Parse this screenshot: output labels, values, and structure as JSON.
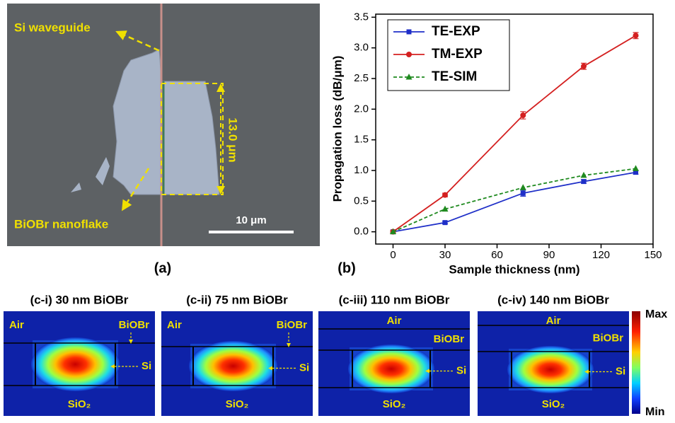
{
  "panel_a": {
    "label": "(a)",
    "waveguide_label": "Si waveguide",
    "flake_label": "BiOBr nanoflake",
    "width_label": "13.0 μm",
    "scale_label": "10 μm"
  },
  "panel_b": {
    "label": "(b)"
  },
  "chart_data": {
    "type": "line",
    "x_label": "Sample thickness (nm)",
    "y_label": "Propagation loss (dB/μm)",
    "x": [
      0,
      30,
      75,
      110,
      140
    ],
    "series": [
      {
        "name": "TE-EXP",
        "color": "#1f2fc8",
        "marker": "square",
        "linestyle": "solid",
        "values": [
          0,
          0.15,
          0.63,
          0.82,
          0.97
        ],
        "errors": [
          0.02,
          0.02,
          0.05,
          0.03,
          0.03
        ]
      },
      {
        "name": "TM-EXP",
        "color": "#d42020",
        "marker": "circle",
        "linestyle": "solid",
        "values": [
          0,
          0.6,
          1.9,
          2.7,
          3.2
        ],
        "errors": [
          0.02,
          0.03,
          0.06,
          0.05,
          0.05
        ]
      },
      {
        "name": "TE-SIM",
        "color": "#1f8a1f",
        "marker": "triangle",
        "linestyle": "dashed",
        "values": [
          0,
          0.37,
          0.72,
          0.92,
          1.03
        ]
      }
    ],
    "xlim": [
      -10,
      150
    ],
    "xticks": [
      0,
      30,
      60,
      90,
      120,
      150
    ],
    "ylim": [
      -0.2,
      3.55
    ],
    "yticks": [
      {
        "value": 0,
        "label": "0.0"
      },
      0.5,
      {
        "value": 1,
        "label": "1.0"
      },
      1.5,
      {
        "value": 2,
        "label": "2.0"
      },
      2.5,
      {
        "value": 3,
        "label": "3.0"
      },
      3.5
    ],
    "grid": false,
    "legend": "upper left"
  },
  "panel_c": {
    "colorbar": {
      "max": "Max",
      "min": "Min"
    },
    "modes": [
      {
        "title": "(c-i) 30 nm BiOBr",
        "air": "Air",
        "biobr": "BiOBr",
        "si": "Si",
        "sio2": "SiO₂"
      },
      {
        "title": "(c-ii) 75 nm BiOBr",
        "air": "Air",
        "biobr": "BiOBr",
        "si": "Si",
        "sio2": "SiO₂"
      },
      {
        "title": "(c-iii) 110 nm BiOBr",
        "air": "Air",
        "biobr": "BiOBr",
        "si": "Si",
        "sio2": "SiO₂"
      },
      {
        "title": "(c-iv) 140 nm BiOBr",
        "air": "Air",
        "biobr": "BiOBr",
        "si": "Si",
        "sio2": "SiO₂"
      }
    ]
  }
}
